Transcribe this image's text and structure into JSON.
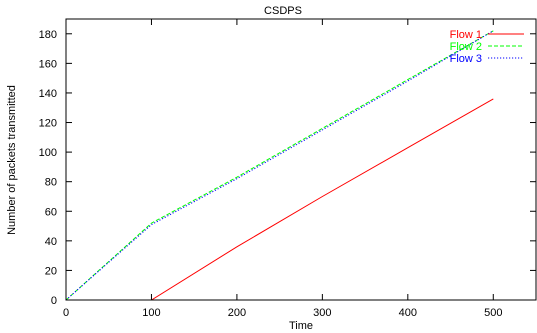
{
  "chart_data": {
    "type": "line",
    "title": "CSDPS",
    "xlabel": "Time",
    "ylabel": "Number of packets transmitted",
    "xlim": [
      0,
      550
    ],
    "ylim": [
      0,
      190
    ],
    "xticks": [
      0,
      100,
      200,
      300,
      400,
      500
    ],
    "yticks": [
      0,
      20,
      40,
      60,
      80,
      100,
      120,
      140,
      160,
      180
    ],
    "grid": false,
    "legend_position": "top-right",
    "series": [
      {
        "name": "Flow 1",
        "color": "#ff0000",
        "dash": "solid",
        "x": [
          0,
          100,
          200,
          300,
          400,
          500
        ],
        "y": [
          0,
          0,
          36,
          70,
          103,
          136
        ]
      },
      {
        "name": "Flow 2",
        "color": "#00ff00",
        "dash": "dashed",
        "x": [
          0,
          100,
          200,
          300,
          400,
          500
        ],
        "y": [
          0,
          52,
          83,
          116,
          149,
          182
        ]
      },
      {
        "name": "Flow 3",
        "color": "#0000ff",
        "dash": "dotted",
        "x": [
          0,
          100,
          200,
          300,
          400,
          500
        ],
        "y": [
          0,
          51,
          82,
          115,
          148,
          182
        ]
      }
    ]
  }
}
